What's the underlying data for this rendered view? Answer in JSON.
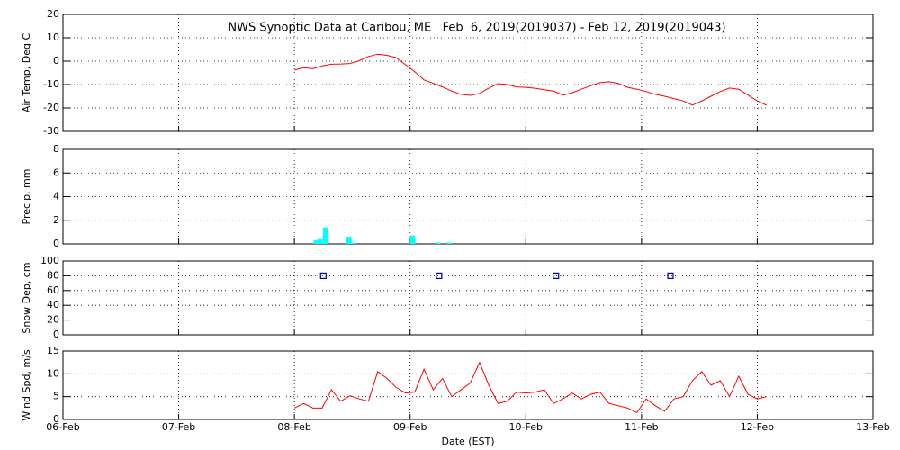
{
  "chart_data": [
    {
      "type": "line",
      "title": "NWS Synoptic Data at Caribou, ME   Feb  6, 2019(2019037) - Feb 12, 2019(2019043)",
      "ylabel": "Air Temp, Deg C",
      "xlim": [
        0,
        7
      ],
      "xticks": [
        0,
        1,
        2,
        3,
        4,
        5,
        6,
        7
      ],
      "ylim": [
        -30,
        20
      ],
      "yticks": [
        -30,
        -20,
        -10,
        0,
        10,
        20
      ],
      "grid": true,
      "x": [
        2,
        2.08,
        2.16,
        2.24,
        2.32,
        2.4,
        2.48,
        2.56,
        2.64,
        2.72,
        2.8,
        2.88,
        2.96,
        3.04,
        3.12,
        3.2,
        3.28,
        3.36,
        3.44,
        3.52,
        3.6,
        3.68,
        3.76,
        3.84,
        3.92,
        4,
        4.08,
        4.16,
        4.24,
        4.32,
        4.4,
        4.48,
        4.56,
        4.64,
        4.72,
        4.8,
        4.88,
        4.96,
        5.04,
        5.12,
        5.2,
        5.28,
        5.36,
        5.44,
        5.52,
        5.6,
        5.68,
        5.76,
        5.84,
        5.92,
        6,
        6.08
      ],
      "series": [
        {
          "color": "#ff0000",
          "values": [
            -3.8,
            -2.8,
            -3.2,
            -2.0,
            -1.3,
            -1.2,
            -1.0,
            0.2,
            2.0,
            3.0,
            2.5,
            1.5,
            -1.5,
            -4.5,
            -8,
            -9.5,
            -11,
            -12.8,
            -14.2,
            -14.6,
            -13.8,
            -11.5,
            -9.6,
            -10,
            -11,
            -11.2,
            -11.6,
            -12.2,
            -12.8,
            -14.5,
            -13.5,
            -12,
            -10.5,
            -9.2,
            -8.8,
            -9.5,
            -11.2,
            -12,
            -13,
            -14.2,
            -15,
            -16,
            -17,
            -18.8,
            -17,
            -15,
            -13,
            -11.5,
            -12,
            -14.5,
            -17,
            -18.8
          ]
        }
      ]
    },
    {
      "type": "bar",
      "ylabel": "Precip, mm",
      "xlim": [
        0,
        7
      ],
      "xticks": [
        0,
        1,
        2,
        3,
        4,
        5,
        6,
        7
      ],
      "ylim": [
        0,
        8
      ],
      "yticks": [
        0,
        2,
        4,
        6,
        8
      ],
      "grid": true,
      "x": [
        2.19,
        2.22,
        2.27,
        2.47,
        2.51,
        3.02,
        3.24,
        3.34
      ],
      "series": [
        {
          "color": "#00ffff",
          "values": [
            0.3,
            0.4,
            1.4,
            0.6,
            0.1,
            0.7,
            0.1,
            0.1
          ]
        }
      ]
    },
    {
      "type": "scatter",
      "ylabel": "Snow Dep, cm",
      "xlim": [
        0,
        7
      ],
      "xticks": [
        0,
        1,
        2,
        3,
        4,
        5,
        6,
        7
      ],
      "ylim": [
        0,
        100
      ],
      "yticks": [
        0,
        20,
        40,
        60,
        80,
        100
      ],
      "grid": true,
      "x": [
        2.25,
        3.25,
        4.26,
        5.25
      ],
      "series": [
        {
          "color": "#0000aa",
          "values": [
            80,
            80,
            80,
            80
          ]
        }
      ]
    },
    {
      "type": "line",
      "ylabel": "Wind Spd, m/s",
      "xlabel": "Date (EST)",
      "xlim": [
        0,
        7
      ],
      "xticks": [
        {
          "value": 0,
          "label": "06-Feb"
        },
        {
          "value": 1,
          "label": "07-Feb"
        },
        {
          "value": 2,
          "label": "08-Feb"
        },
        {
          "value": 3,
          "label": "09-Feb"
        },
        {
          "value": 4,
          "label": "10-Feb"
        },
        {
          "value": 5,
          "label": "11-Feb"
        },
        {
          "value": 6,
          "label": "12-Feb"
        },
        {
          "value": 7,
          "label": "13-Feb"
        }
      ],
      "ylim": [
        0,
        15
      ],
      "yticks": [
        0,
        5,
        10,
        15
      ],
      "grid": true,
      "x": [
        2,
        2.08,
        2.16,
        2.24,
        2.32,
        2.4,
        2.48,
        2.56,
        2.64,
        2.72,
        2.8,
        2.88,
        2.96,
        3.04,
        3.12,
        3.2,
        3.28,
        3.36,
        3.44,
        3.52,
        3.6,
        3.68,
        3.76,
        3.84,
        3.92,
        4,
        4.08,
        4.16,
        4.24,
        4.32,
        4.4,
        4.48,
        4.56,
        4.64,
        4.72,
        4.8,
        4.88,
        4.96,
        5.04,
        5.12,
        5.2,
        5.28,
        5.36,
        5.44,
        5.52,
        5.6,
        5.68,
        5.76,
        5.84,
        5.92,
        6,
        6.08
      ],
      "series": [
        {
          "color": "#ff0000",
          "values": [
            2.5,
            3.5,
            2.5,
            2.5,
            6.5,
            4,
            5.2,
            4.5,
            4,
            10.5,
            9,
            7,
            5.8,
            6,
            11,
            6.5,
            9,
            5,
            6.5,
            8,
            12.5,
            7.5,
            3.5,
            4,
            6,
            5.8,
            6,
            6.5,
            3.5,
            4.5,
            5.8,
            4.5,
            5.5,
            6,
            3.5,
            3,
            2.5,
            1.5,
            4.5,
            3,
            1.8,
            4.5,
            5,
            8.5,
            10.5,
            7.5,
            8.5,
            5,
            9.5,
            5.5,
            4.5,
            5
          ]
        }
      ]
    }
  ]
}
